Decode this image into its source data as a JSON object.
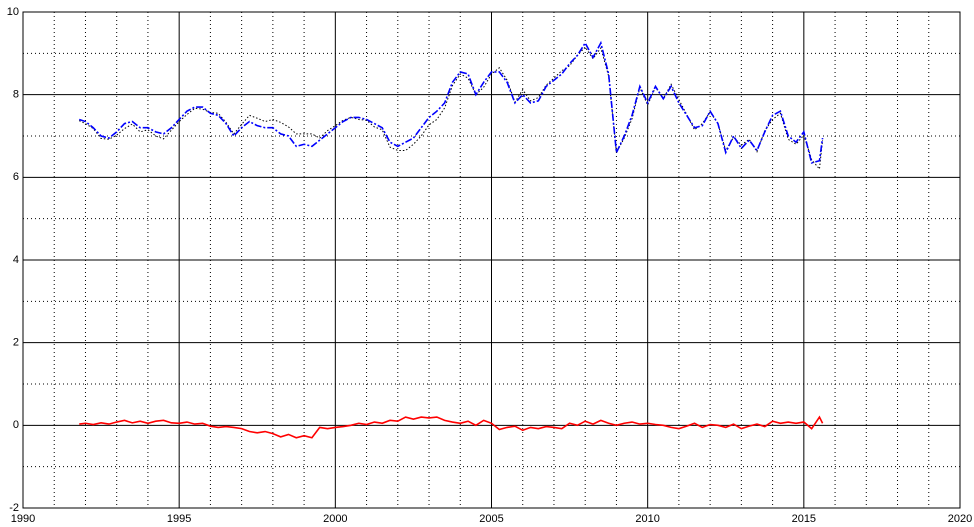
{
  "chart_data": {
    "type": "line",
    "x": [
      1991.8,
      1992.0,
      1992.25,
      1992.5,
      1992.75,
      1993.0,
      1993.25,
      1993.5,
      1993.75,
      1994.0,
      1994.25,
      1994.5,
      1994.75,
      1995.0,
      1995.25,
      1995.5,
      1995.75,
      1996.0,
      1996.25,
      1996.5,
      1996.75,
      1997.0,
      1997.25,
      1997.5,
      1997.75,
      1998.0,
      1998.25,
      1998.5,
      1998.75,
      1999.0,
      1999.25,
      1999.5,
      1999.75,
      2000.0,
      2000.25,
      2000.5,
      2000.75,
      2001.0,
      2001.25,
      2001.5,
      2001.75,
      2002.0,
      2002.25,
      2002.5,
      2002.75,
      2003.0,
      2003.25,
      2003.5,
      2003.75,
      2004.0,
      2004.25,
      2004.5,
      2004.75,
      2005.0,
      2005.25,
      2005.5,
      2005.75,
      2006.0,
      2006.25,
      2006.5,
      2006.75,
      2007.0,
      2007.25,
      2007.5,
      2007.75,
      2008.0,
      2008.25,
      2008.5,
      2008.75,
      2009.0,
      2009.25,
      2009.5,
      2009.75,
      2010.0,
      2010.25,
      2010.5,
      2010.75,
      2011.0,
      2011.25,
      2011.5,
      2011.75,
      2012.0,
      2012.25,
      2012.5,
      2012.75,
      2013.0,
      2013.25,
      2013.5,
      2013.75,
      2014.0,
      2014.25,
      2014.5,
      2014.75,
      2015.0,
      2015.25,
      2015.5,
      2015.6
    ],
    "series": [
      {
        "color": "#0000ff",
        "dash": "dashdot",
        "values": [
          7.4,
          7.35,
          7.2,
          7.0,
          6.95,
          7.1,
          7.3,
          7.35,
          7.2,
          7.2,
          7.1,
          7.05,
          7.2,
          7.4,
          7.6,
          7.7,
          7.7,
          7.55,
          7.5,
          7.3,
          7.0,
          7.2,
          7.35,
          7.25,
          7.2,
          7.2,
          7.05,
          7.0,
          6.75,
          6.8,
          6.75,
          6.9,
          7.05,
          7.2,
          7.35,
          7.45,
          7.45,
          7.4,
          7.3,
          7.2,
          6.85,
          6.75,
          6.85,
          6.95,
          7.2,
          7.45,
          7.6,
          7.8,
          8.3,
          8.55,
          8.5,
          8.0,
          8.3,
          8.55,
          8.55,
          8.3,
          7.8,
          8.0,
          7.8,
          7.85,
          8.2,
          8.35,
          8.5,
          8.75,
          8.95,
          9.25,
          8.9,
          9.25,
          8.5,
          6.6,
          7.0,
          7.5,
          8.2,
          7.8,
          8.2,
          7.9,
          8.2,
          7.8,
          7.5,
          7.2,
          7.25,
          7.6,
          7.3,
          6.6,
          7.0,
          6.7,
          6.9,
          6.65,
          7.1,
          7.5,
          7.6,
          7.0,
          6.85,
          7.1,
          6.35,
          6.4,
          6.95
        ]
      },
      {
        "color": "#000000",
        "dash": "dotted",
        "values": [
          7.37,
          7.3,
          7.18,
          6.94,
          6.92,
          7.02,
          7.18,
          7.29,
          7.1,
          7.15,
          7.0,
          6.93,
          7.14,
          7.35,
          7.52,
          7.67,
          7.65,
          7.57,
          7.55,
          7.33,
          7.05,
          7.28,
          7.5,
          7.43,
          7.35,
          7.4,
          7.33,
          7.22,
          7.05,
          7.05,
          7.05,
          6.95,
          7.13,
          7.25,
          7.38,
          7.45,
          7.4,
          7.38,
          7.22,
          7.15,
          6.73,
          6.65,
          6.65,
          6.8,
          7.0,
          7.27,
          7.4,
          7.68,
          8.22,
          8.5,
          8.4,
          8.0,
          8.18,
          8.5,
          8.65,
          8.35,
          7.82,
          8.12,
          7.85,
          7.93,
          8.23,
          8.4,
          8.58,
          8.7,
          8.95,
          9.15,
          8.87,
          9.13,
          8.45,
          6.6,
          6.95,
          7.42,
          8.17,
          7.75,
          8.18,
          7.9,
          8.25,
          7.88,
          7.52,
          7.15,
          7.3,
          7.58,
          7.3,
          6.65,
          6.97,
          6.78,
          6.92,
          6.62,
          7.13,
          7.4,
          7.55,
          6.92,
          6.8,
          7.02,
          6.43,
          6.2,
          6.9
        ]
      },
      {
        "color": "#ff0000",
        "dash": "solid",
        "values": [
          0.03,
          0.05,
          0.02,
          0.06,
          0.03,
          0.08,
          0.12,
          0.06,
          0.1,
          0.05,
          0.1,
          0.12,
          0.06,
          0.05,
          0.08,
          0.03,
          0.05,
          -0.02,
          -0.05,
          -0.03,
          -0.05,
          -0.08,
          -0.15,
          -0.18,
          -0.15,
          -0.2,
          -0.28,
          -0.22,
          -0.3,
          -0.25,
          -0.3,
          -0.05,
          -0.08,
          -0.05,
          -0.03,
          0.0,
          0.05,
          0.02,
          0.08,
          0.05,
          0.12,
          0.1,
          0.2,
          0.15,
          0.2,
          0.18,
          0.2,
          0.12,
          0.08,
          0.05,
          0.1,
          0.0,
          0.12,
          0.05,
          -0.1,
          -0.05,
          -0.02,
          -0.12,
          -0.05,
          -0.08,
          -0.03,
          -0.05,
          -0.08,
          0.05,
          0.0,
          0.1,
          0.03,
          0.12,
          0.05,
          0.0,
          0.05,
          0.08,
          0.03,
          0.05,
          0.02,
          0.0,
          -0.05,
          -0.08,
          -0.02,
          0.05,
          -0.05,
          0.02,
          0.0,
          -0.05,
          0.03,
          -0.08,
          -0.02,
          0.03,
          -0.03,
          0.1,
          0.05,
          0.08,
          0.05,
          0.08,
          -0.08,
          0.2,
          0.05
        ]
      }
    ],
    "xlim": [
      1990,
      2020
    ],
    "ylim": [
      -2,
      10
    ],
    "xticks": [
      1990,
      1995,
      2000,
      2005,
      2010,
      2015,
      2020
    ],
    "yticks": [
      -2,
      0,
      2,
      4,
      6,
      8,
      10
    ],
    "grid": true
  }
}
